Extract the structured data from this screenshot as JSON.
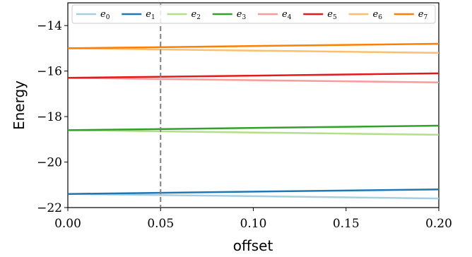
{
  "chart_data": {
    "type": "line",
    "title": "",
    "xlabel": "offset",
    "ylabel": "Energy",
    "xlim": [
      0.0,
      0.2
    ],
    "ylim": [
      -22,
      -13
    ],
    "xticks": [
      0.0,
      0.05,
      0.1,
      0.15,
      0.2
    ],
    "xtick_labels": [
      "0.00",
      "0.05",
      "0.10",
      "0.15",
      "0.20"
    ],
    "yticks": [
      -14,
      -16,
      -18,
      -20,
      -22
    ],
    "ytick_labels": [
      "−14",
      "−16",
      "−18",
      "−20",
      "−22"
    ],
    "grid": false,
    "legend_position": "top",
    "vline": {
      "x": 0.05,
      "color": "#808080",
      "style": "dashed"
    },
    "x": [
      0.0,
      0.2
    ],
    "series": [
      {
        "name": "e",
        "sub": "0",
        "color": "#a6cee3",
        "values": [
          -21.4,
          -21.6
        ]
      },
      {
        "name": "e",
        "sub": "1",
        "color": "#1f78b4",
        "values": [
          -21.4,
          -21.2
        ]
      },
      {
        "name": "e",
        "sub": "2",
        "color": "#b2df8a",
        "values": [
          -18.6,
          -18.8
        ]
      },
      {
        "name": "e",
        "sub": "3",
        "color": "#33a02c",
        "values": [
          -18.6,
          -18.4
        ]
      },
      {
        "name": "e",
        "sub": "4",
        "color": "#fb9a99",
        "values": [
          -16.3,
          -16.5
        ]
      },
      {
        "name": "e",
        "sub": "5",
        "color": "#e31a1c",
        "values": [
          -16.3,
          -16.1
        ]
      },
      {
        "name": "e",
        "sub": "6",
        "color": "#fdbf6f",
        "values": [
          -15.0,
          -15.2
        ]
      },
      {
        "name": "e",
        "sub": "7",
        "color": "#ff7f00",
        "values": [
          -15.0,
          -14.8
        ]
      }
    ]
  }
}
